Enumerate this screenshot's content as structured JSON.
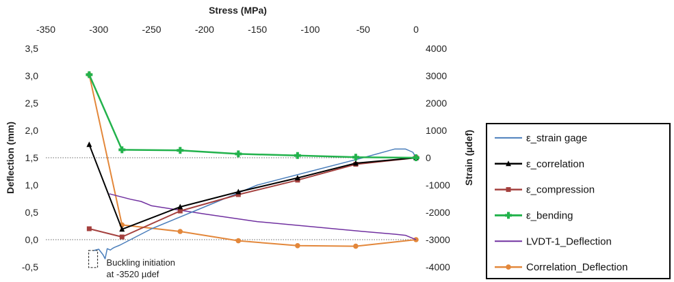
{
  "chart_data": {
    "type": "line",
    "x_axis": {
      "title": "Stress (MPa)",
      "min": -350,
      "max": 0,
      "ticks": [
        -350,
        -300,
        -250,
        -200,
        -150,
        -100,
        -50,
        0
      ],
      "tick_labels": [
        "-350",
        "-300",
        "-250",
        "-200",
        "-150",
        "-100",
        "-50",
        "0"
      ],
      "position": "top"
    },
    "y_axis_left": {
      "title": "Deflection (mm)",
      "min": -0.5,
      "max": 3.5,
      "ticks": [
        -0.5,
        0.0,
        0.5,
        1.0,
        1.5,
        2.0,
        2.5,
        3.0,
        3.5
      ],
      "tick_labels": [
        "-0,5",
        "0,0",
        "0,5",
        "1,0",
        "1,5",
        "2,0",
        "2,5",
        "3,0",
        "3,5"
      ]
    },
    "y_axis_right": {
      "title": "Strain (µdef)",
      "min": -4000,
      "max": 4000,
      "ticks": [
        -4000,
        -3000,
        -2000,
        -1000,
        0,
        1000,
        2000,
        3000,
        4000
      ],
      "tick_labels": [
        "-4000",
        "-3000",
        "-2000",
        "-1000",
        "0",
        "1000",
        "2000",
        "3000",
        "4000"
      ]
    },
    "reference_lines": [
      {
        "axis": "left",
        "value": 0.0,
        "style": "dotted"
      },
      {
        "axis": "right",
        "value": 0,
        "style": "dotted"
      }
    ],
    "series": [
      {
        "name": "ε_strain gage",
        "axis": "right",
        "color": "#4a7ebb",
        "marker": "none",
        "width": 1.5,
        "x": [
          -305,
          -300,
          -296,
          -294,
          -292,
          -289,
          -287,
          -285,
          -280,
          -250,
          -200,
          -150,
          -100,
          -50,
          -20,
          -10,
          -3,
          0
        ],
        "y": [
          -3400,
          -3350,
          -3550,
          -3700,
          -3330,
          -3380,
          -3320,
          -3280,
          -3200,
          -2600,
          -1800,
          -1000,
          -500,
          0,
          320,
          320,
          200,
          0
        ]
      },
      {
        "name": "ε_correlation",
        "axis": "right",
        "color": "#000000",
        "marker": "triangle",
        "width": 2,
        "x": [
          -309,
          -278,
          -223,
          -168,
          -112,
          -57,
          0
        ],
        "y": [
          480,
          -2620,
          -1800,
          -1250,
          -740,
          -200,
          0
        ]
      },
      {
        "name": "ε_compression",
        "axis": "right",
        "color": "#a4403e",
        "marker": "square",
        "width": 2,
        "x": [
          -309,
          -278,
          -223,
          -168,
          -112,
          -57,
          0
        ],
        "y": [
          -2600,
          -2900,
          -1950,
          -1350,
          -820,
          -240,
          0
        ]
      },
      {
        "name": "ε_bending",
        "axis": "right",
        "color": "#22b24c",
        "marker": "cross",
        "width": 2.5,
        "x": [
          -309,
          -278,
          -223,
          -168,
          -112,
          -57,
          0
        ],
        "y": [
          3040,
          290,
          270,
          140,
          80,
          20,
          0
        ]
      },
      {
        "name": "LVDT-1_Deflection",
        "axis": "left",
        "color": "#7030a0",
        "marker": "none",
        "width": 1.5,
        "x": [
          -290,
          -270,
          -260,
          -250,
          -200,
          -150,
          -100,
          -50,
          -20,
          -10,
          -5,
          0
        ],
        "y": [
          0.84,
          0.74,
          0.7,
          0.62,
          0.47,
          0.33,
          0.24,
          0.15,
          0.1,
          0.08,
          0.04,
          0.0
        ]
      },
      {
        "name": "Correlation_Deflection",
        "axis": "left",
        "color": "#e3873a",
        "marker": "circle",
        "width": 2,
        "x": [
          -309,
          -278,
          -223,
          -168,
          -112,
          -57,
          0
        ],
        "y": [
          3.02,
          0.27,
          0.15,
          -0.02,
          -0.11,
          -0.12,
          0.0
        ]
      }
    ],
    "annotations": [
      {
        "lines": [
          "Buckling initiation",
          "at -3520 µdef"
        ],
        "x": -305,
        "y_right": -3520
      }
    ],
    "legend": {
      "placement": "right"
    }
  }
}
